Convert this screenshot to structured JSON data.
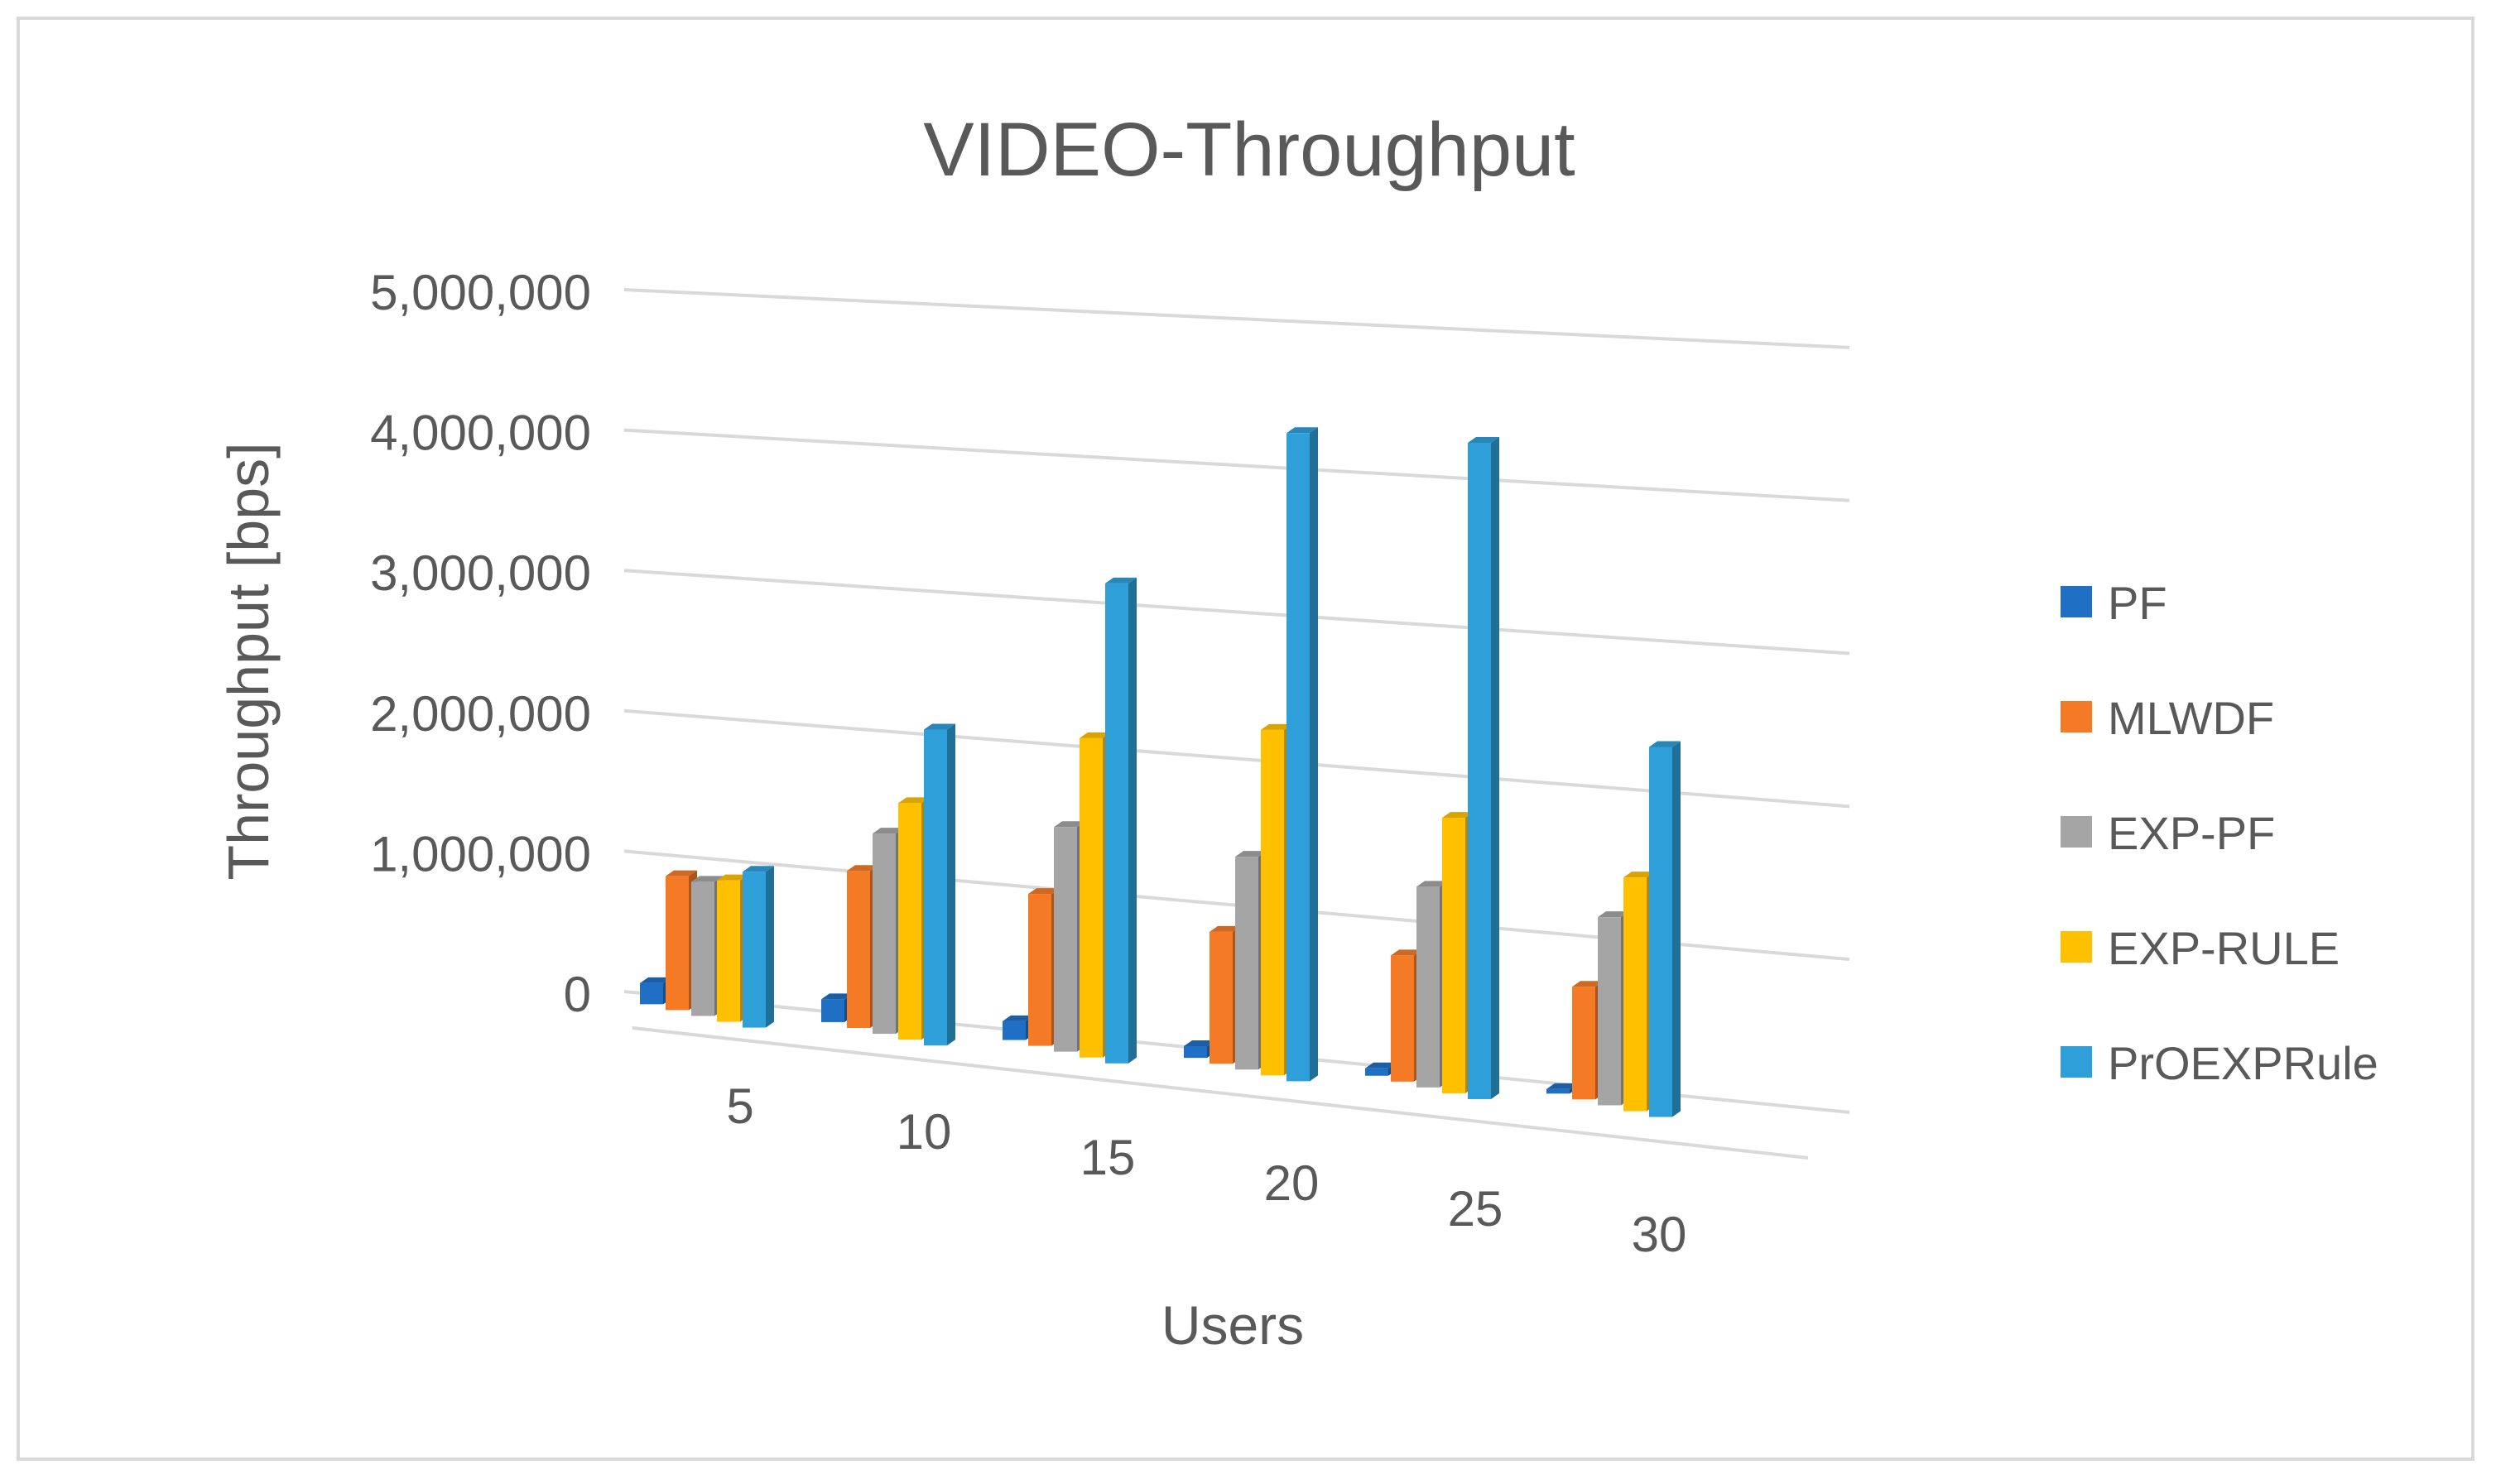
{
  "chart_data": {
    "type": "bar",
    "variant": "3d-clustered-column",
    "title": "VIDEO-Throughput",
    "xlabel": "Users",
    "ylabel": "Throughput [bps]",
    "categories": [
      "5",
      "10",
      "15",
      "20",
      "25",
      "30"
    ],
    "ylim": [
      0,
      5000000
    ],
    "yticks": [
      0,
      1000000,
      2000000,
      3000000,
      4000000,
      5000000
    ],
    "ytick_labels": [
      "0",
      "1,000,000",
      "2,000,000",
      "3,000,000",
      "4,000,000",
      "5,000,000"
    ],
    "grid": true,
    "legend_position": "right",
    "series": [
      {
        "name": "PF",
        "color": "#1f6fc5",
        "values": [
          150000,
          160000,
          130000,
          80000,
          50000,
          30000
        ]
      },
      {
        "name": "MLWDF",
        "color": "#f47a26",
        "values": [
          950000,
          1100000,
          1050000,
          900000,
          850000,
          750000
        ]
      },
      {
        "name": "EXP-PF",
        "color": "#a5a5a5",
        "values": [
          950000,
          1400000,
          1550000,
          1450000,
          1350000,
          1250000
        ]
      },
      {
        "name": "EXP-RULE",
        "color": "#ffc000",
        "values": [
          1000000,
          1650000,
          2200000,
          2350000,
          1850000,
          1550000
        ]
      },
      {
        "name": "PrOEXPRule",
        "color": "#2e9fd8",
        "values": [
          1100000,
          2200000,
          3300000,
          4400000,
          4400000,
          2450000
        ]
      }
    ]
  }
}
